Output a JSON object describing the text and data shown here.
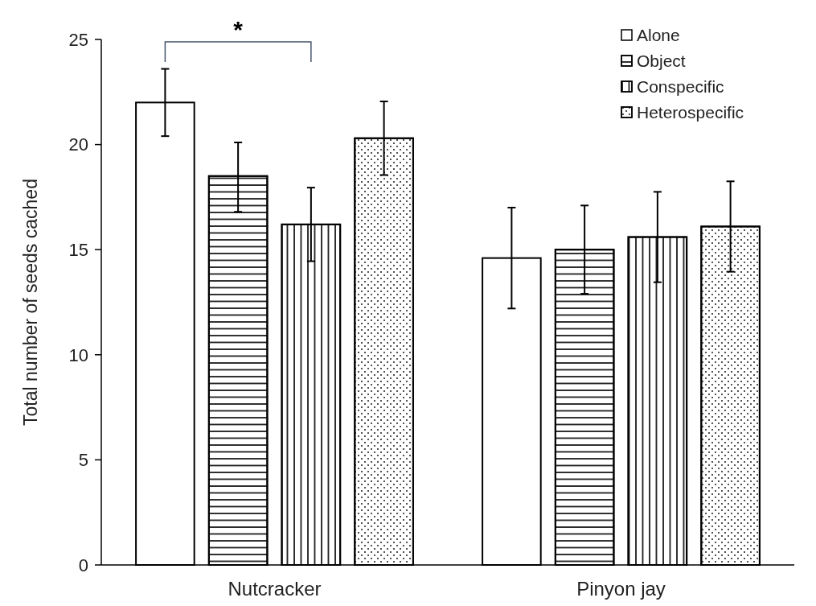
{
  "chart_data": {
    "type": "bar",
    "ylabel": "Total number of seeds cached",
    "categories": [
      "Nutcracker",
      "Pinyon jay"
    ],
    "series": [
      {
        "name": "Alone",
        "color": "#ffffff",
        "values": [
          22.0,
          14.6
        ],
        "errors": [
          1.6,
          2.4
        ]
      },
      {
        "name": "Object",
        "color": "#ffffff",
        "values": [
          18.5,
          15.0
        ],
        "errors": [
          [
            16.8,
            20.1
          ],
          2.1
        ]
      },
      {
        "name": "Conspecific",
        "color": "#ffffff",
        "values": [
          16.2,
          15.6
        ],
        "errors": [
          1.75,
          2.15
        ]
      },
      {
        "name": "Heterospecific",
        "color": "#ffffff",
        "values": [
          20.3,
          16.1
        ],
        "errors": [
          1.75,
          2.15
        ]
      }
    ],
    "ylim": [
      0,
      25
    ],
    "yticks": [
      0,
      5,
      10,
      15,
      20,
      25
    ],
    "legend": "top right",
    "annotations": [
      "*"
    ]
  }
}
